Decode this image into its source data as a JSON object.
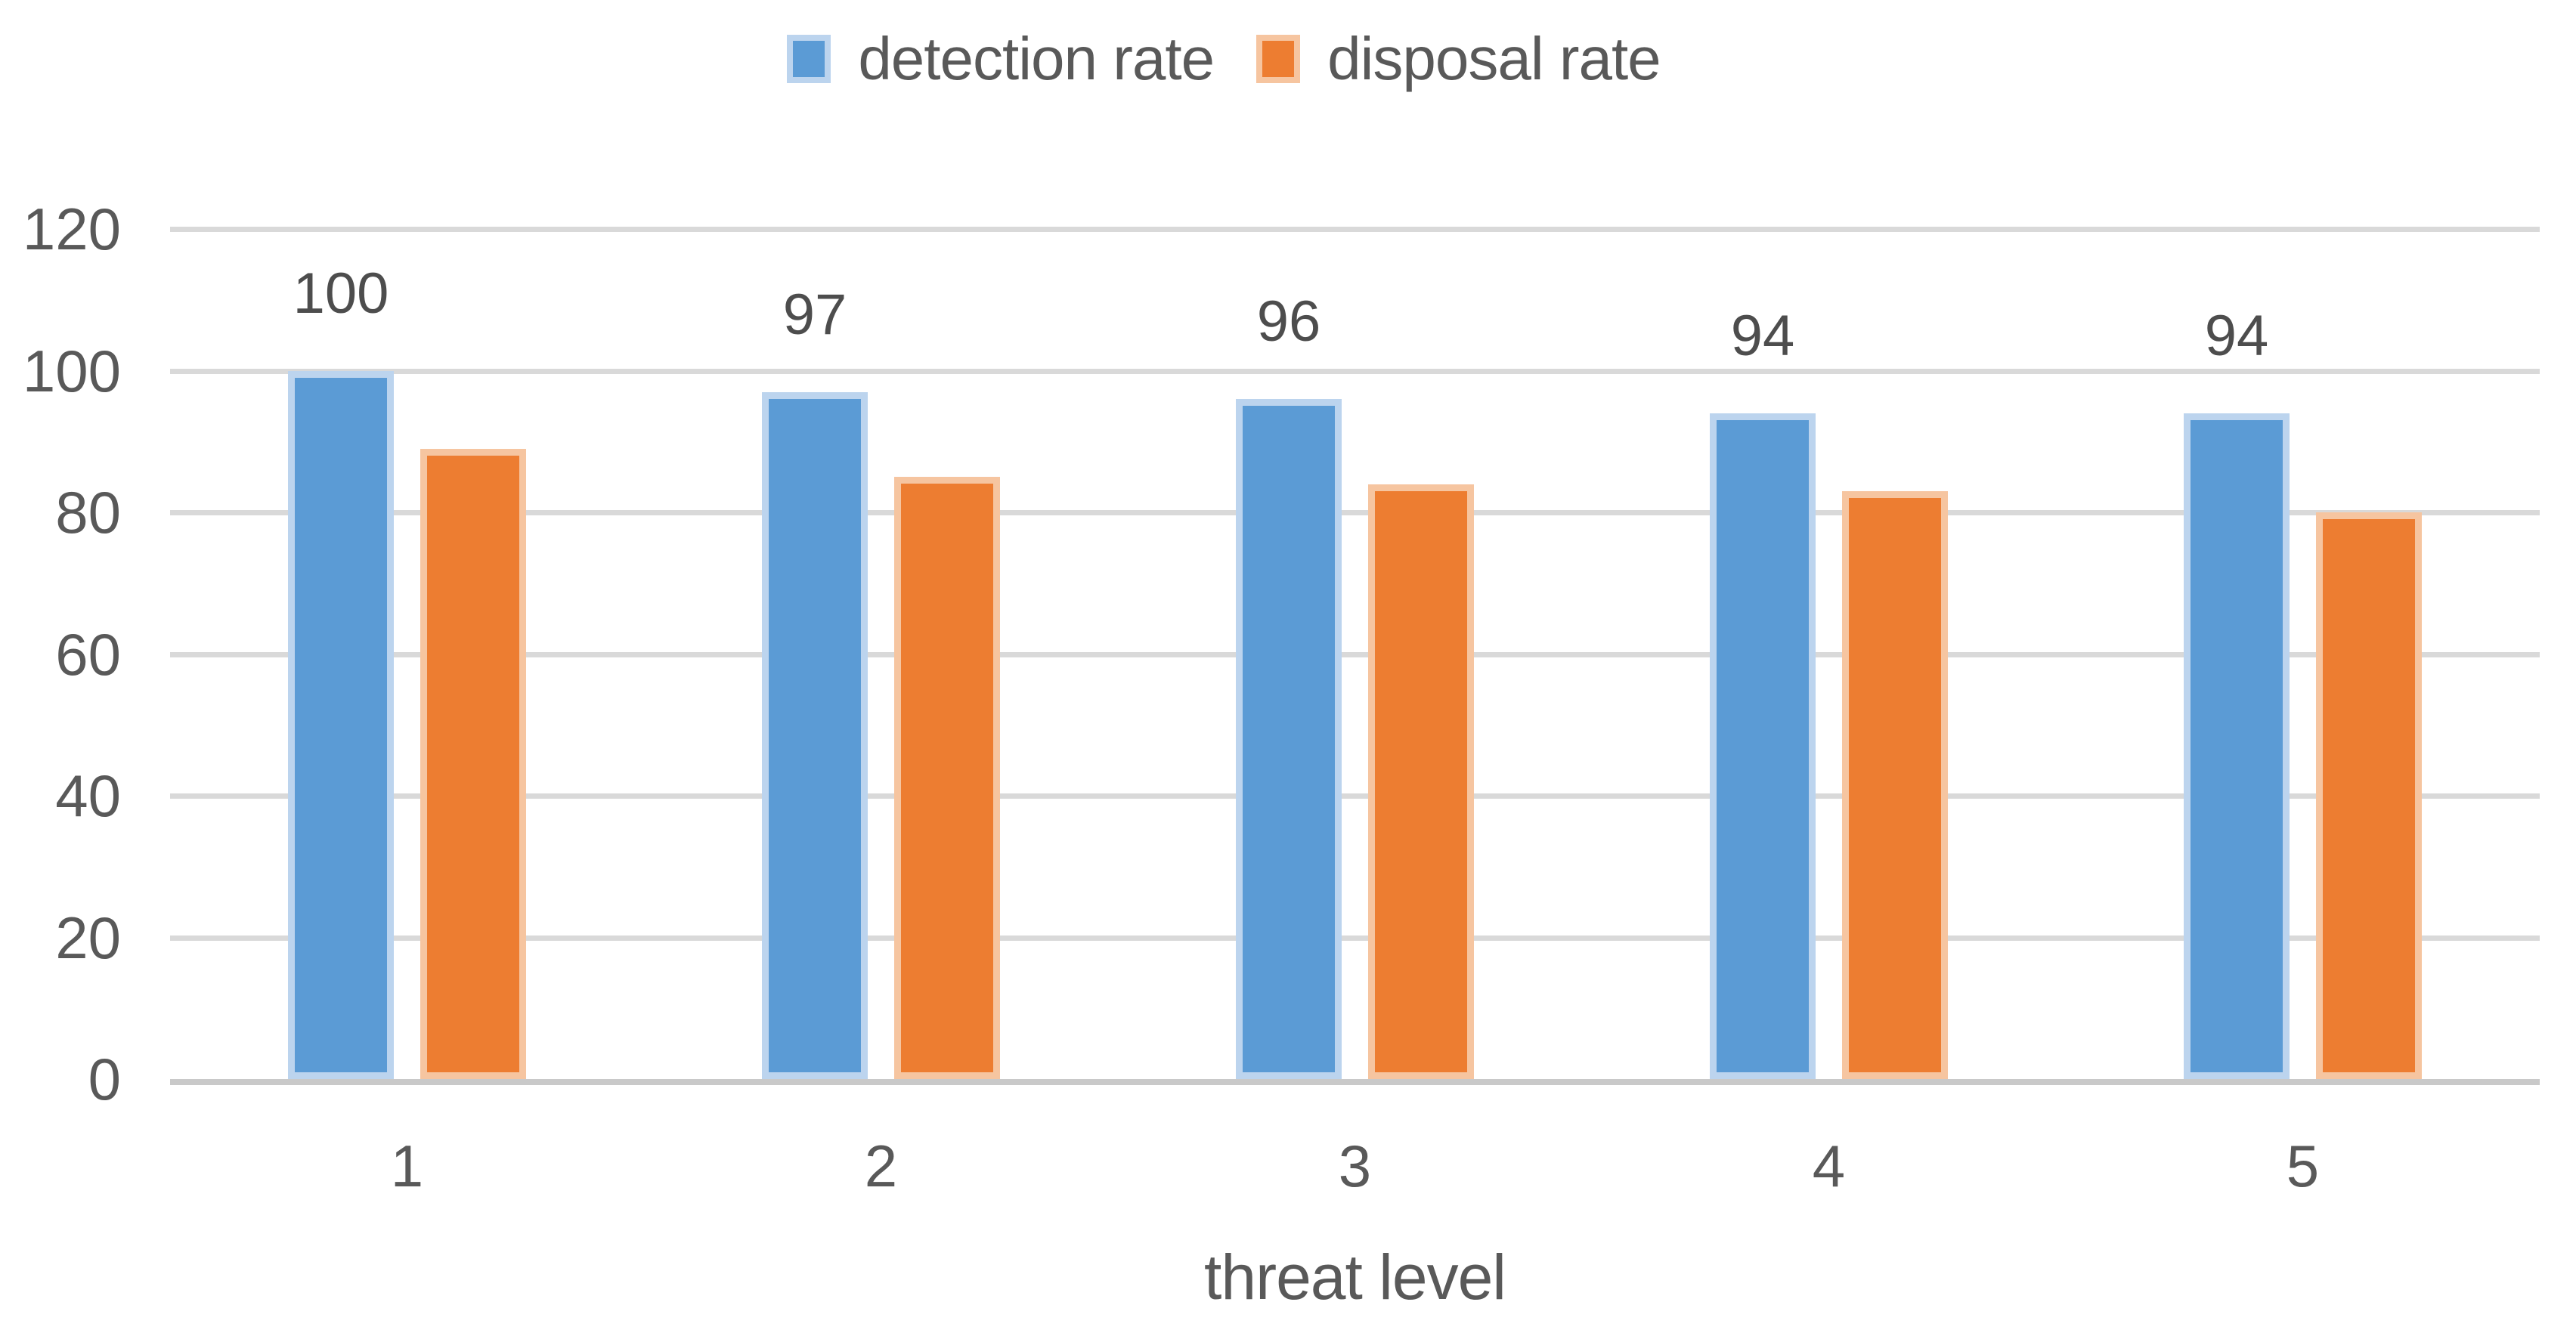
{
  "chart_data": {
    "type": "bar",
    "title": "",
    "xlabel": "threat level",
    "ylabel": "",
    "categories": [
      "1",
      "2",
      "3",
      "4",
      "5"
    ],
    "series": [
      {
        "name": "detection rate",
        "color": "#5B9BD5",
        "border_tint": "#BCD4EE",
        "values": [
          100,
          97,
          96,
          94,
          94
        ],
        "data_labels": [
          "100",
          "97",
          "96",
          "94",
          "94"
        ]
      },
      {
        "name": "disposal rate",
        "color": "#ED7D31",
        "border_tint": "#F6C5A0",
        "values": [
          89,
          85,
          84,
          83,
          80
        ],
        "data_labels": null
      }
    ],
    "yticks": [
      0,
      20,
      40,
      60,
      80,
      100,
      120
    ],
    "ylim": [
      0,
      120
    ],
    "grid": true,
    "gridline_color": "#D9D9D9",
    "axis_line_color": "#C9C9C9",
    "text_color": "#595959",
    "legend_position": "top-center",
    "background": "#FFFFFF"
  }
}
